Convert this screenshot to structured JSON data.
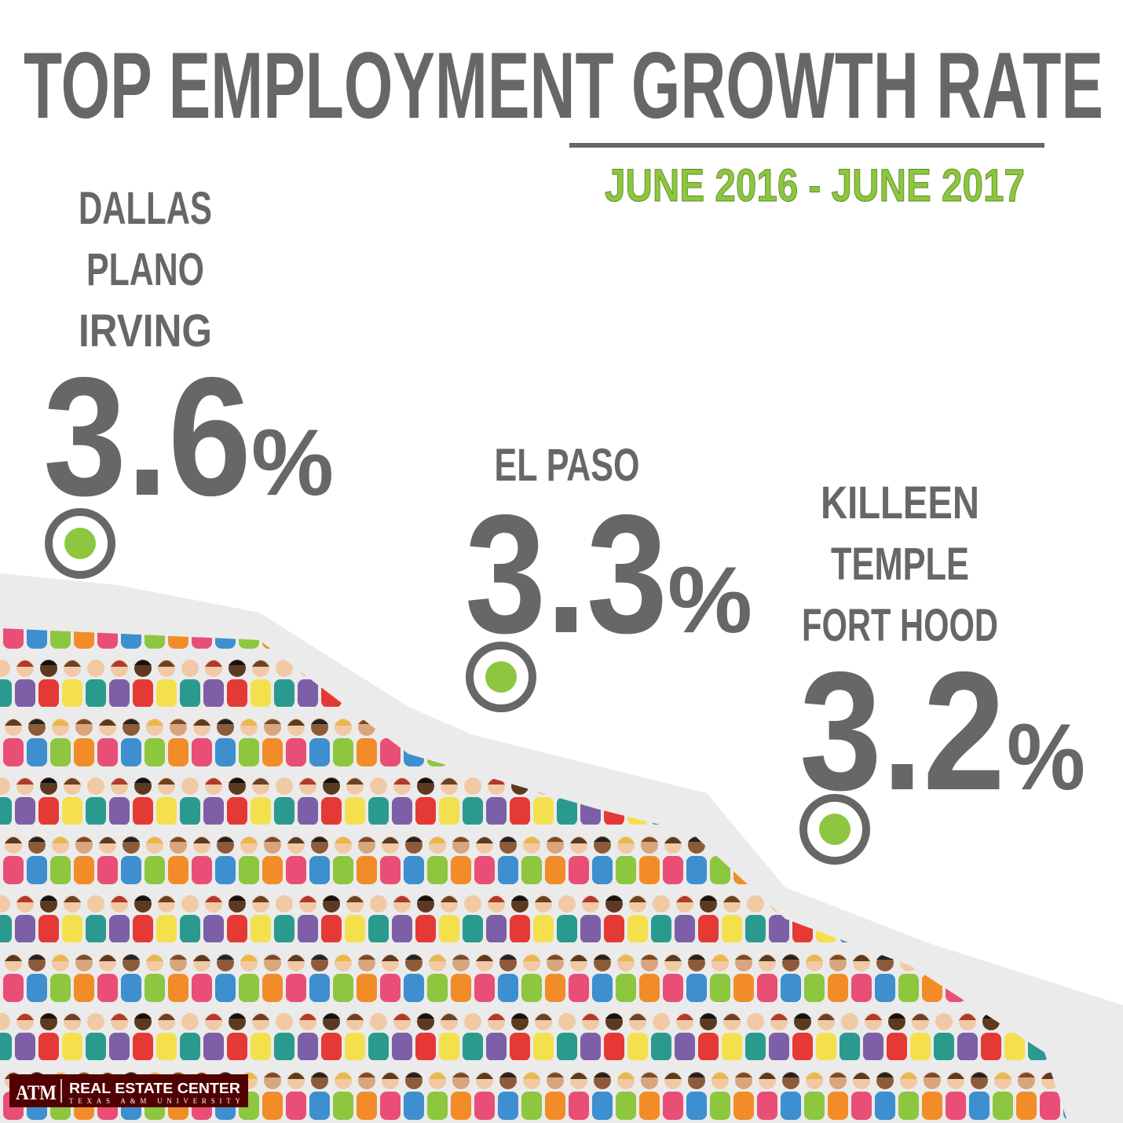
{
  "title": "TOP EMPLOYMENT GROWTH RATE",
  "subtitle": "JUNE 2016 - JUNE 2017",
  "items": [
    {
      "lines": [
        "DALLAS",
        "PLANO",
        "IRVING"
      ],
      "value": "3.6",
      "unit": "%"
    },
    {
      "lines": [
        "EL PASO"
      ],
      "value": "3.3",
      "unit": "%"
    },
    {
      "lines": [
        "KILLEEN",
        "TEMPLE",
        "FORT HOOD"
      ],
      "value": "3.2",
      "unit": "%"
    }
  ],
  "logo": {
    "mark": "ATM",
    "name": "REAL ESTATE CENTER",
    "university": "TEXAS A&M UNIVERSITY"
  }
}
